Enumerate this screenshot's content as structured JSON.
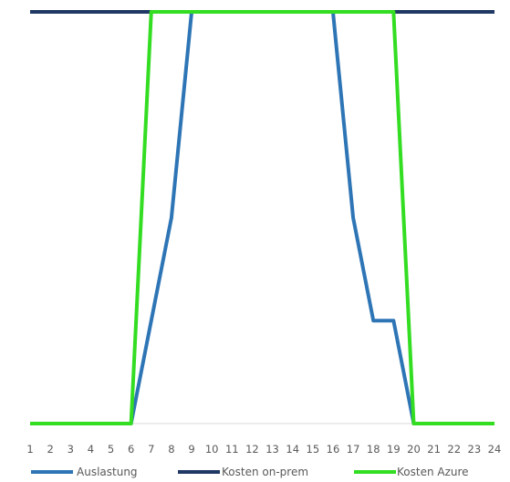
{
  "chart_data": {
    "type": "line",
    "title": "",
    "xlabel": "",
    "ylabel": "",
    "x": [
      "1",
      "2",
      "3",
      "4",
      "5",
      "6",
      "7",
      "8",
      "9",
      "10",
      "11",
      "12",
      "13",
      "14",
      "15",
      "16",
      "17",
      "18",
      "19",
      "20",
      "21",
      "22",
      "23",
      "24"
    ],
    "ylim": [
      0,
      100
    ],
    "grid": false,
    "legend_position": "bottom",
    "series": [
      {
        "name": "Auslastung",
        "color": "#2e75b6",
        "values": [
          0,
          0,
          0,
          0,
          0,
          0,
          25,
          50,
          100,
          100,
          100,
          100,
          100,
          100,
          100,
          100,
          50,
          25,
          25,
          0,
          0,
          0,
          0,
          0
        ]
      },
      {
        "name": "Kosten on-prem",
        "color": "#1f3864",
        "values": [
          100,
          100,
          100,
          100,
          100,
          100,
          100,
          100,
          100,
          100,
          100,
          100,
          100,
          100,
          100,
          100,
          100,
          100,
          100,
          100,
          100,
          100,
          100,
          100
        ]
      },
      {
        "name": "Kosten Azure",
        "color": "#33dd22",
        "values": [
          0,
          0,
          0,
          0,
          0,
          0,
          100,
          100,
          100,
          100,
          100,
          100,
          100,
          100,
          100,
          100,
          100,
          100,
          100,
          0,
          0,
          0,
          0,
          0
        ]
      }
    ]
  }
}
